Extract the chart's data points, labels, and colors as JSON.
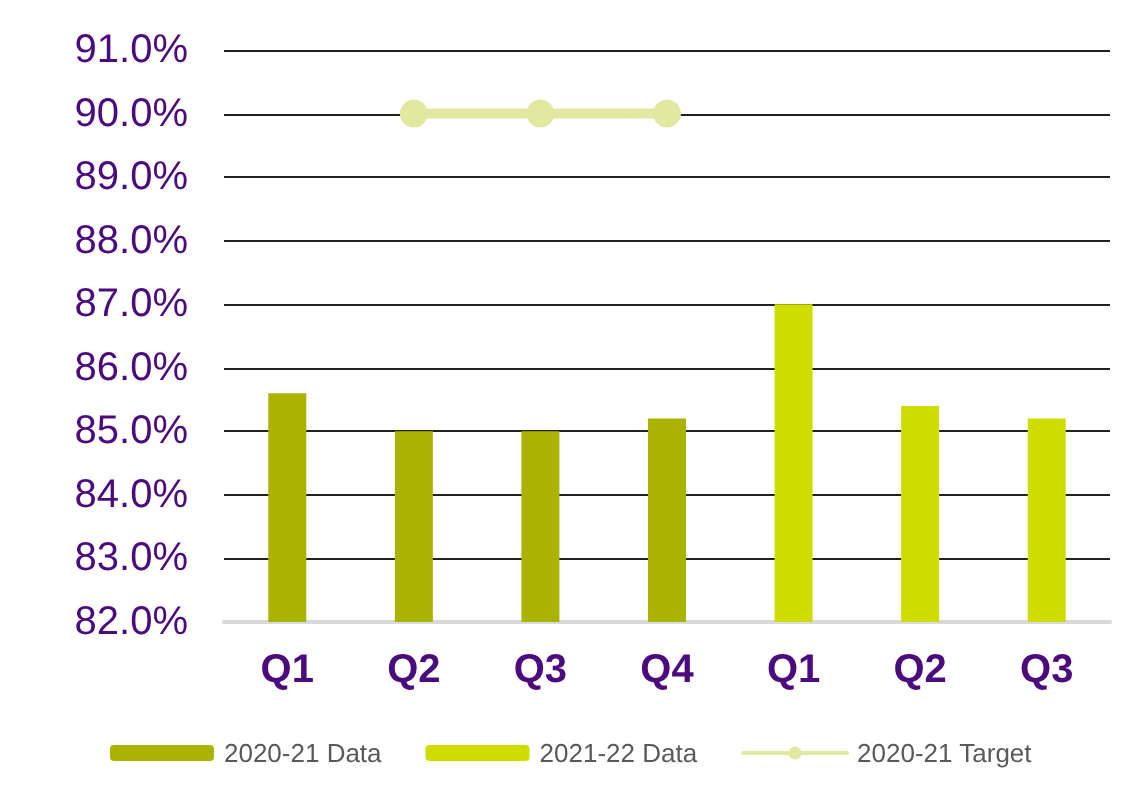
{
  "chart_data": {
    "type": "bar",
    "categories": [
      "Q1",
      "Q2",
      "Q3",
      "Q4",
      "Q1",
      "Q2",
      "Q3"
    ],
    "series": [
      {
        "name": "2020-21 Data",
        "color": "#aab400",
        "values": [
          85.6,
          85.0,
          85.0,
          85.2,
          null,
          null,
          null
        ]
      },
      {
        "name": "2021-22 Data",
        "color": "#cedc00",
        "values": [
          null,
          null,
          null,
          null,
          87.0,
          85.4,
          85.2
        ]
      },
      {
        "name": "2020-21 Target",
        "type": "line",
        "color": "#e1e9a0",
        "marker": "circle",
        "values": [
          null,
          90,
          90,
          90,
          null,
          null,
          null
        ]
      }
    ],
    "ylim": [
      82,
      91
    ],
    "yticks": [
      {
        "value": 82,
        "label": "82.0%"
      },
      {
        "value": 83,
        "label": "83.0%"
      },
      {
        "value": 84,
        "label": "84.0%"
      },
      {
        "value": 85,
        "label": "85.0%"
      },
      {
        "value": 86,
        "label": "86.0%"
      },
      {
        "value": 87,
        "label": "87.0%"
      },
      {
        "value": 88,
        "label": "88.0%"
      },
      {
        "value": 89,
        "label": "89.0%"
      },
      {
        "value": 90,
        "label": "90.0%"
      },
      {
        "value": 91,
        "label": "91.0%"
      }
    ],
    "grid": "y",
    "legend": "bottom"
  }
}
